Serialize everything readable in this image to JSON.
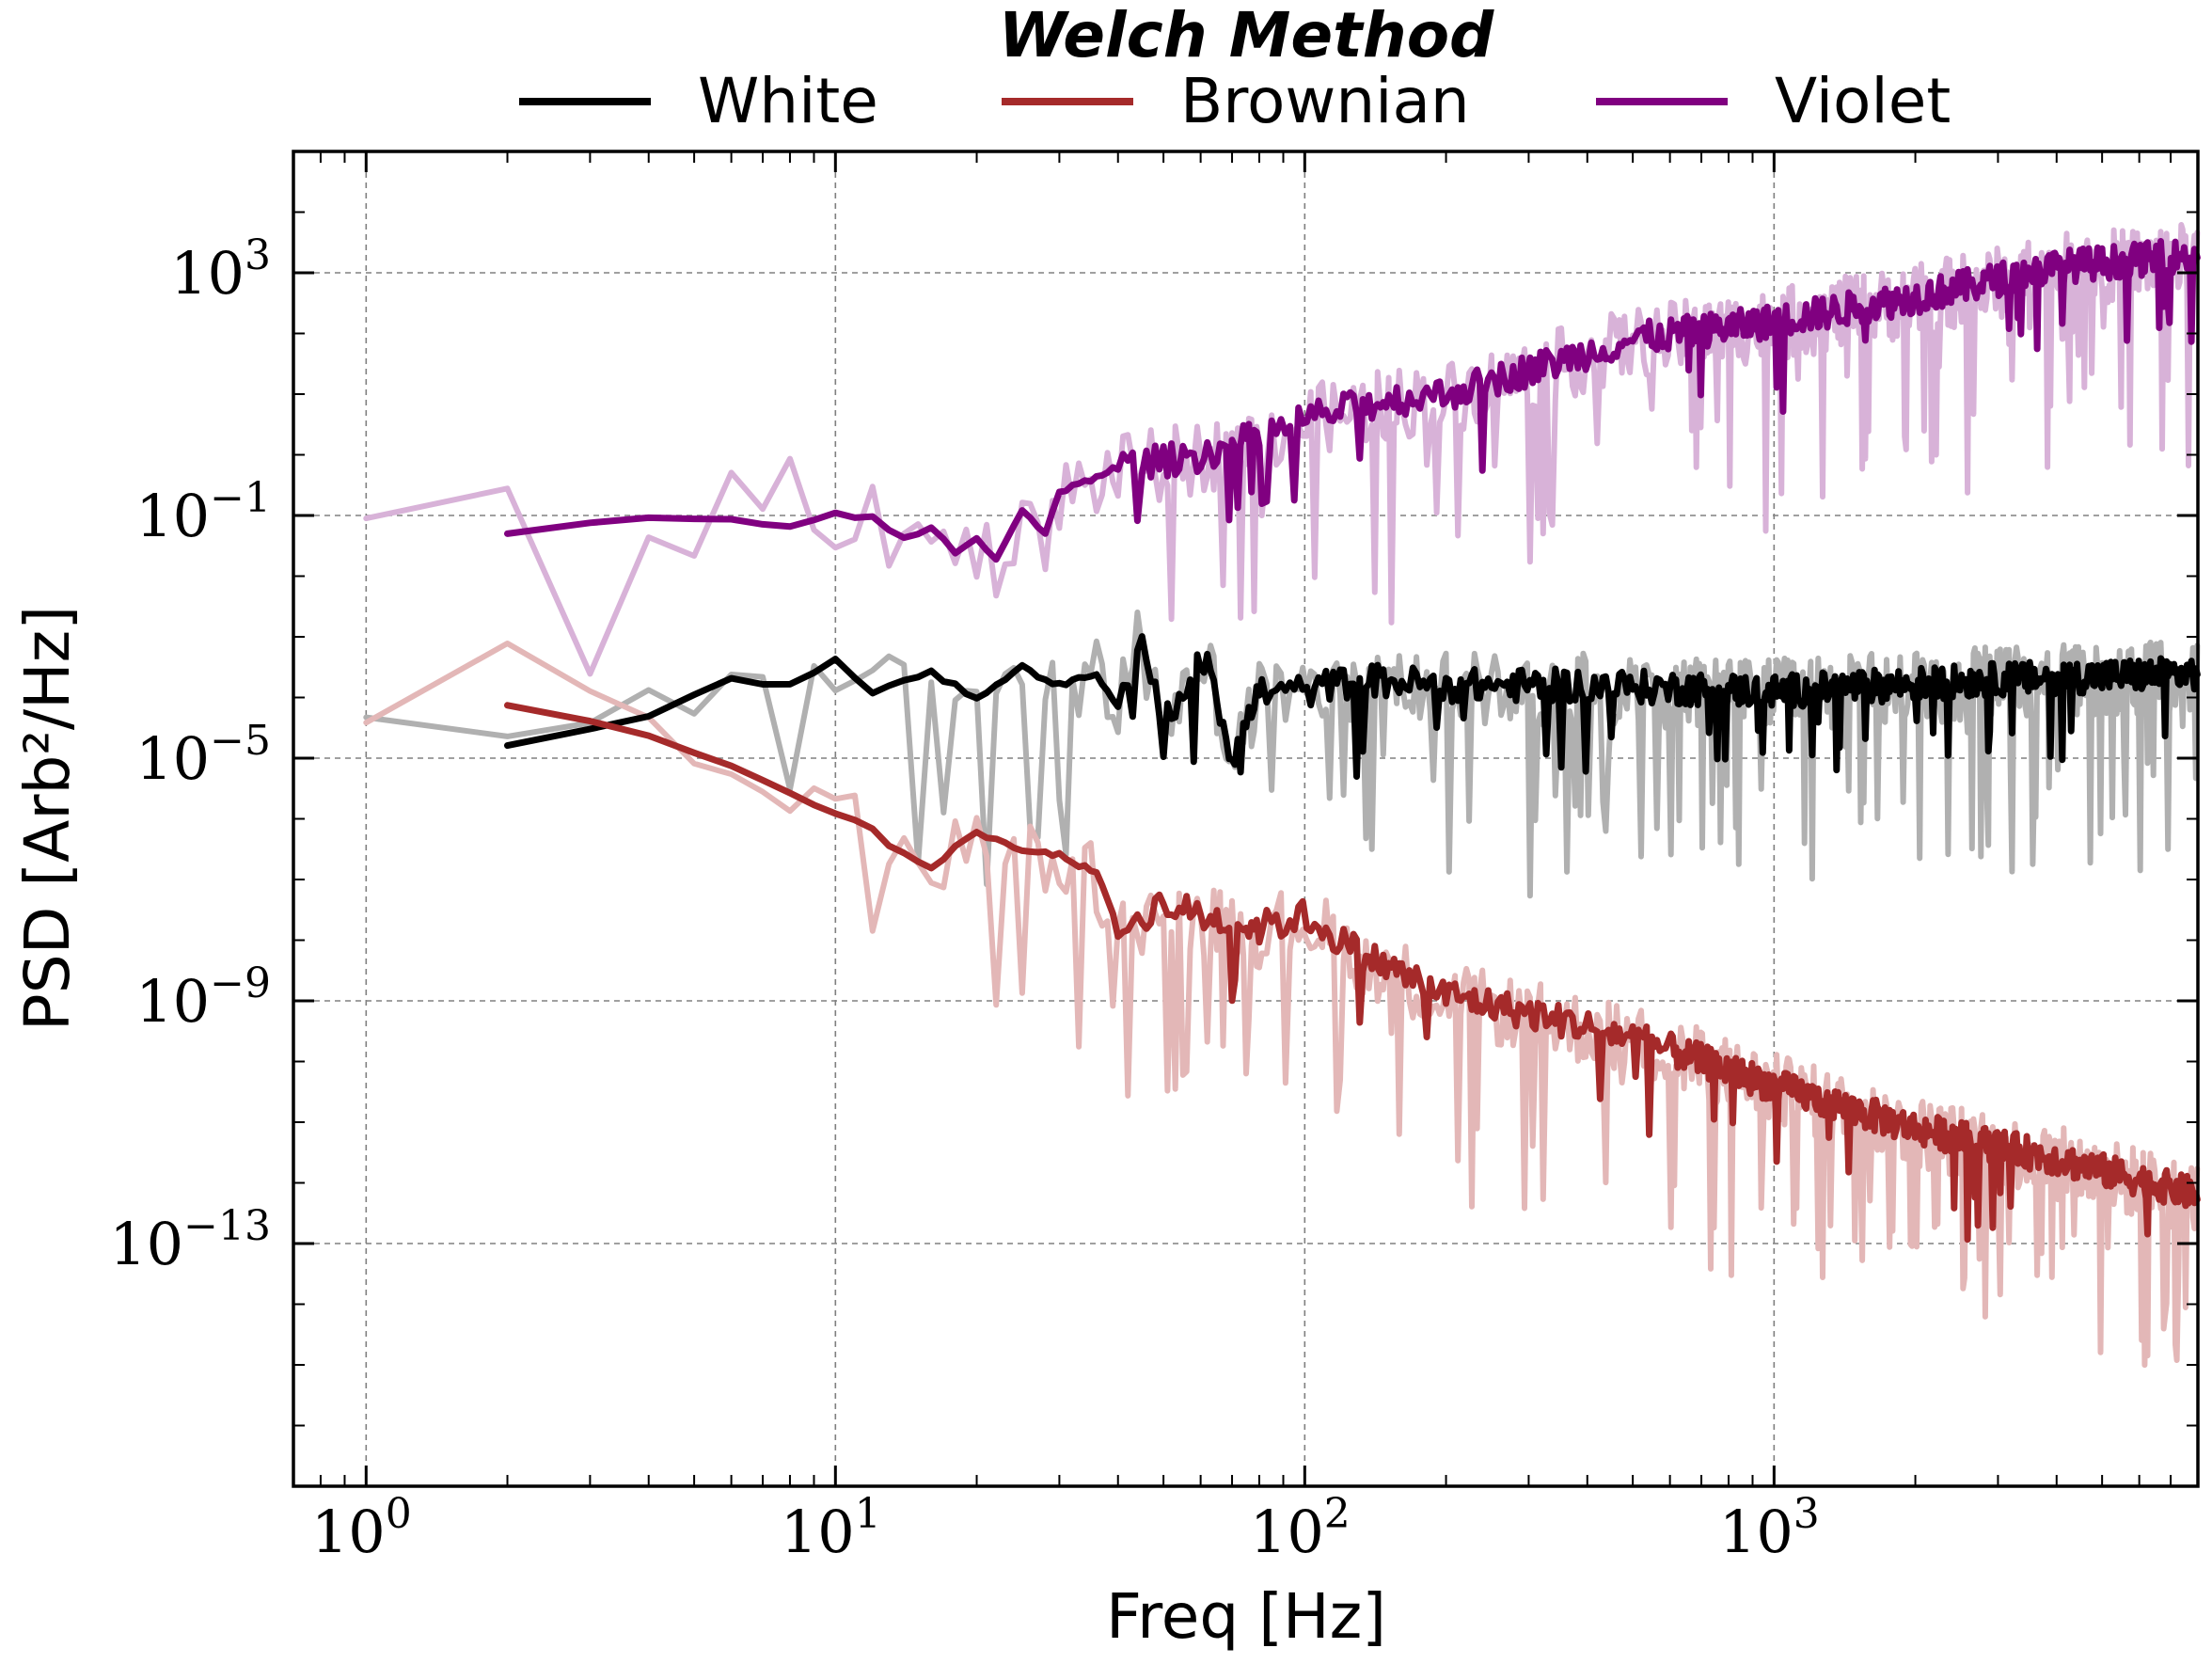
{
  "chart_data": {
    "type": "line",
    "title": "Welch Method",
    "xlabel": "Freq [Hz]",
    "ylabel": "PSD [Arb²/Hz]",
    "xscale": "log",
    "yscale": "log",
    "xlim": [
      0.7,
      8000
    ],
    "ylim": [
      1e-17,
      100000.0
    ],
    "grid": true,
    "legend_position": "top-center",
    "x_ticks": [
      {
        "base": "10",
        "exp": "0",
        "value": 1
      },
      {
        "base": "10",
        "exp": "1",
        "value": 10
      },
      {
        "base": "10",
        "exp": "2",
        "value": 100
      },
      {
        "base": "10",
        "exp": "3",
        "value": 1000
      }
    ],
    "y_ticks": [
      {
        "base": "10",
        "exp": "3",
        "value": 1000.0
      },
      {
        "base": "10",
        "exp": "−1",
        "value": 0.1
      },
      {
        "base": "10",
        "exp": "−5",
        "value": 1e-05
      },
      {
        "base": "10",
        "exp": "−9",
        "value": 1e-09
      },
      {
        "base": "10",
        "exp": "−13",
        "value": 1e-13
      }
    ],
    "series": [
      {
        "name": "White",
        "color": "#000000",
        "bg_color": "#b0b0b0",
        "start_welch": 2,
        "start_raw": 1,
        "welch_points": [
          [
            2,
            -4.8
          ],
          [
            4,
            -4.3
          ],
          [
            6,
            -3.7
          ],
          [
            8,
            -3.8
          ],
          [
            10,
            -3.4
          ],
          [
            12,
            -3.9
          ],
          [
            16,
            -3.6
          ],
          [
            20,
            -4.0
          ],
          [
            25,
            -3.5
          ],
          [
            30,
            -3.8
          ],
          [
            36,
            -3.6
          ],
          [
            40,
            -4.2
          ],
          [
            44,
            -3.0
          ],
          [
            50,
            -4.4
          ],
          [
            56,
            -3.8
          ],
          [
            62,
            -3.3
          ],
          [
            70,
            -5.0
          ],
          [
            80,
            -3.9
          ],
          [
            100,
            -3.9
          ],
          [
            130,
            -3.7
          ],
          [
            200,
            -3.8
          ],
          [
            400,
            -3.8
          ],
          [
            1000,
            -3.9
          ],
          [
            3000,
            -3.7
          ],
          [
            8000,
            -3.6
          ]
        ]
      },
      {
        "name": "Brownian",
        "color": "#a52a2a",
        "bg_color": "#e3b7b7",
        "start_welch": 2,
        "start_raw": 1,
        "welch_points": [
          [
            2,
            -4.1
          ],
          [
            4,
            -4.6
          ],
          [
            6,
            -5.1
          ],
          [
            8,
            -5.6
          ],
          [
            10,
            -5.9
          ],
          [
            12,
            -6.2
          ],
          [
            14,
            -6.6
          ],
          [
            16,
            -6.8
          ],
          [
            20,
            -6.2
          ],
          [
            24,
            -6.5
          ],
          [
            30,
            -6.6
          ],
          [
            36,
            -6.9
          ],
          [
            40,
            -7.8
          ],
          [
            50,
            -7.4
          ],
          [
            60,
            -7.6
          ],
          [
            80,
            -7.8
          ],
          [
            100,
            -7.6
          ],
          [
            130,
            -8.2
          ],
          [
            200,
            -8.9
          ],
          [
            300,
            -9.2
          ],
          [
            500,
            -9.6
          ],
          [
            1000,
            -10.4
          ],
          [
            2000,
            -11.1
          ],
          [
            4000,
            -11.6
          ],
          [
            8000,
            -12.2
          ]
        ]
      },
      {
        "name": "Violet",
        "color": "#800080",
        "bg_color": "#d8b2d8",
        "start_welch": 2,
        "start_raw": 1,
        "welch_points": [
          [
            2,
            -1.3
          ],
          [
            4,
            -1.05
          ],
          [
            6,
            -1.1
          ],
          [
            8,
            -1.2
          ],
          [
            10,
            -0.95
          ],
          [
            12,
            -1.05
          ],
          [
            14,
            -1.4
          ],
          [
            16,
            -1.2
          ],
          [
            18,
            -1.6
          ],
          [
            20,
            -1.4
          ],
          [
            22,
            -1.7
          ],
          [
            25,
            -0.9
          ],
          [
            28,
            -1.3
          ],
          [
            30,
            -0.6
          ],
          [
            34,
            -0.45
          ],
          [
            40,
            -0.2
          ],
          [
            50,
            -0.1
          ],
          [
            60,
            0.0
          ],
          [
            80,
            0.3
          ],
          [
            100,
            0.6
          ],
          [
            150,
            0.9
          ],
          [
            200,
            1.0
          ],
          [
            300,
            1.4
          ],
          [
            500,
            1.9
          ],
          [
            1000,
            2.2
          ],
          [
            2000,
            2.6
          ],
          [
            4000,
            3.1
          ],
          [
            8000,
            3.3
          ]
        ]
      }
    ]
  }
}
